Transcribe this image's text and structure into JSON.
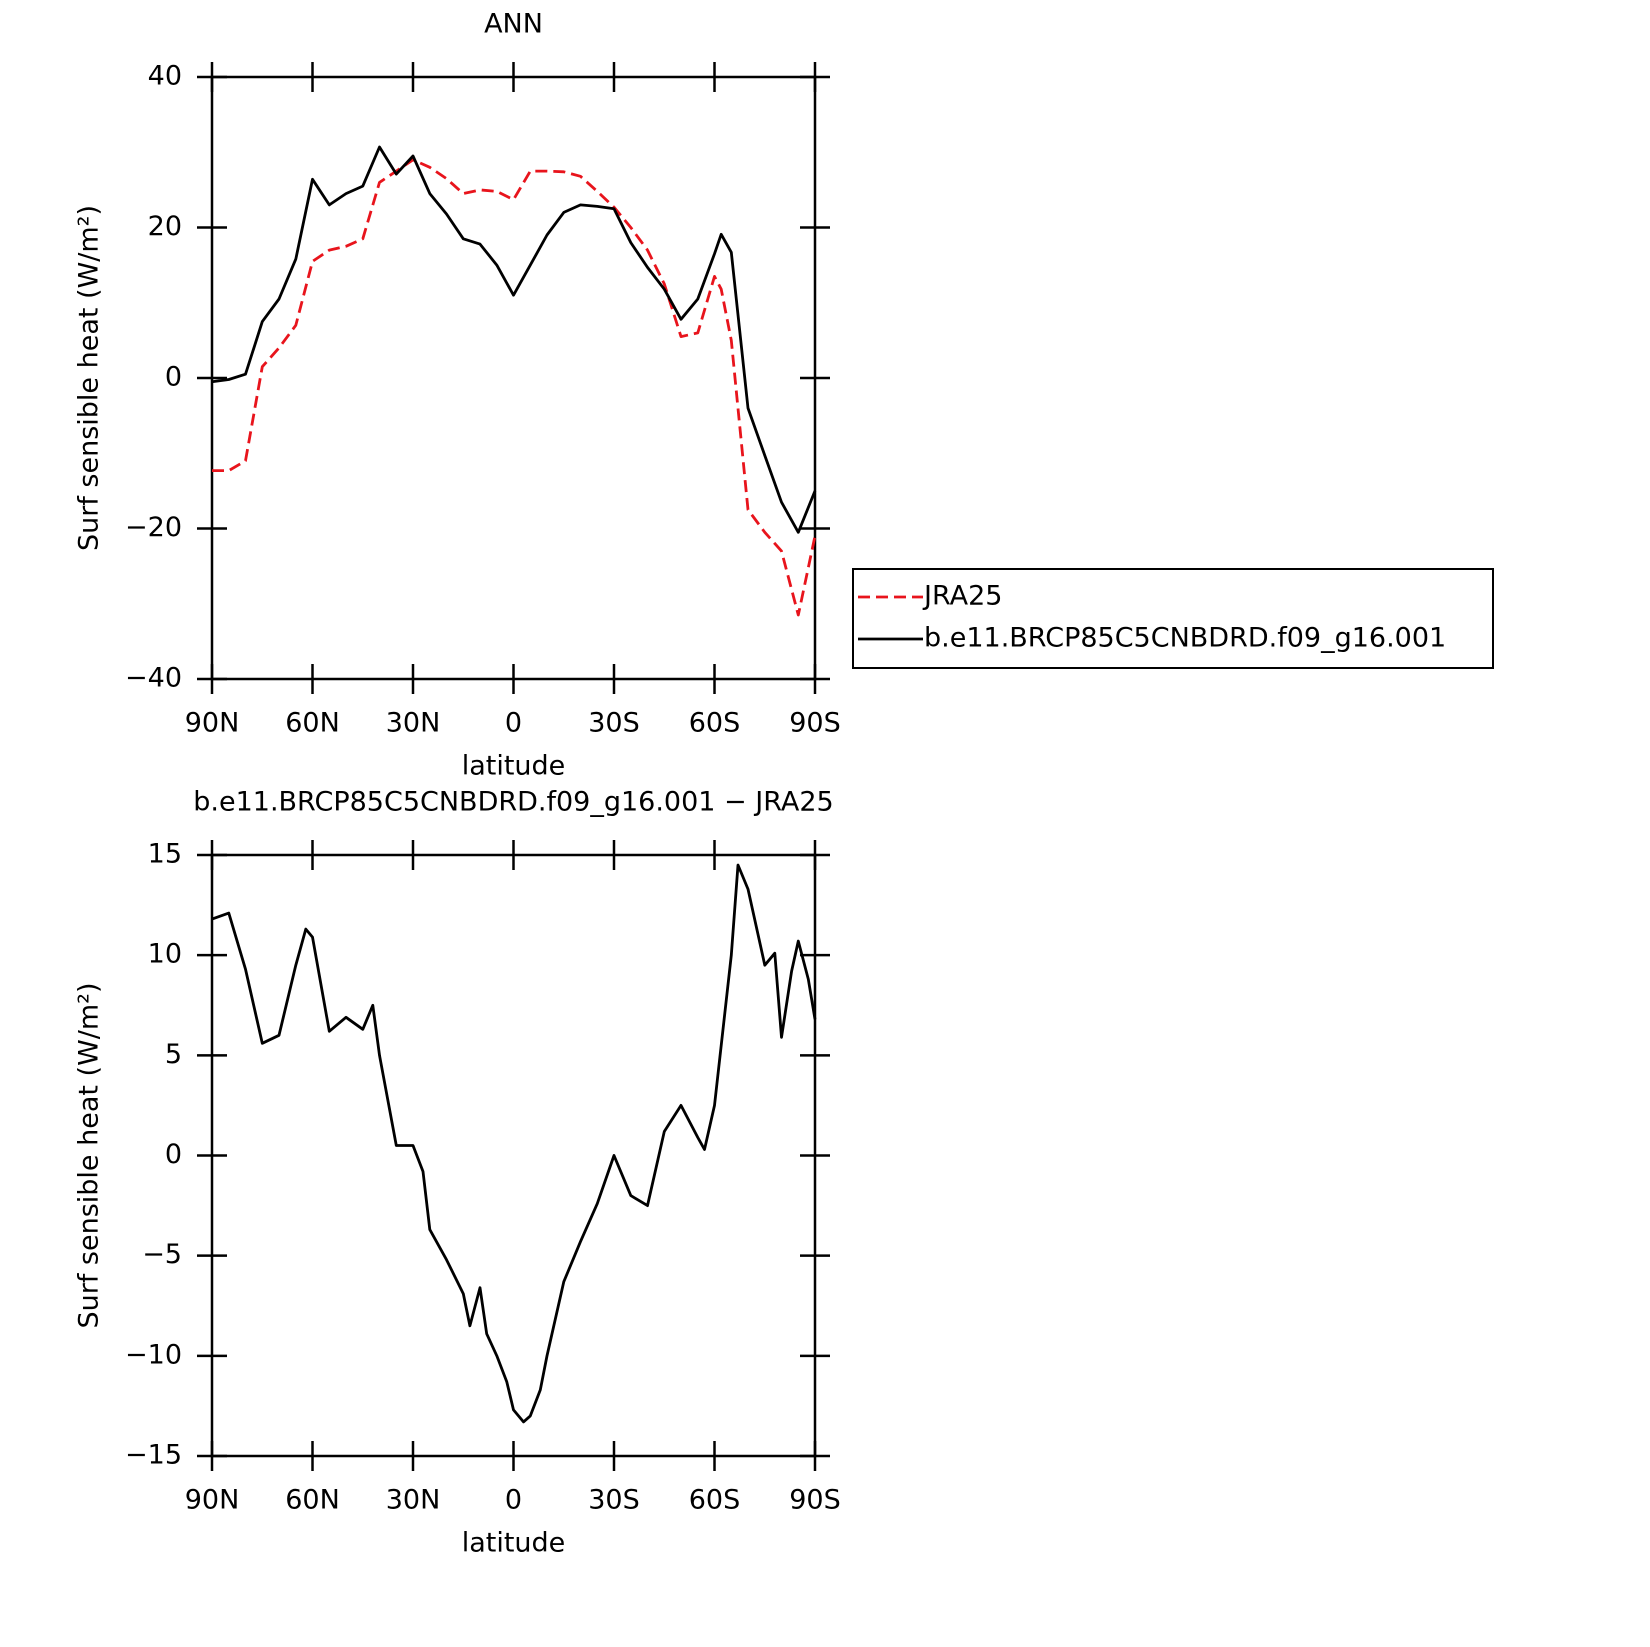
{
  "chart_data": [
    {
      "type": "line",
      "title": "ANN",
      "x_label": "latitude",
      "y_label": "Surf sensible heat (W/m²)",
      "x": [
        90,
        85,
        80,
        75,
        70,
        65,
        60,
        55,
        50,
        45,
        40,
        35,
        30,
        25,
        20,
        15,
        10,
        5,
        0,
        -5,
        -10,
        -15,
        -20,
        -25,
        -30,
        -35,
        -40,
        -45,
        -50,
        -55,
        -60,
        -62,
        -65,
        -70,
        -75,
        -80,
        -85,
        -90
      ],
      "series": [
        {
          "name": "JRA25",
          "color": "#e8141c",
          "dash": true,
          "values": [
            -12.3,
            -12.3,
            -11,
            1.5,
            4,
            7,
            15.5,
            17,
            17.5,
            18.5,
            26,
            27.5,
            29,
            28,
            26.5,
            24.5,
            25,
            24.8,
            23.7,
            27.5,
            27.5,
            27.4,
            26.8,
            24.8,
            22.7,
            20,
            17,
            12.5,
            5.5,
            6,
            13.5,
            11.8,
            5,
            -17.5,
            -20.5,
            -23,
            -31.5,
            -21
          ]
        },
        {
          "name": "b.e11.BRCP85C5CNBDRD.f09_g16.001",
          "color": "#000000",
          "dash": false,
          "values": [
            -0.5,
            -0.2,
            0.5,
            7.5,
            10.5,
            15.8,
            26.4,
            23,
            24.5,
            25.5,
            30.7,
            27.1,
            29.5,
            24.5,
            21.8,
            18.5,
            17.8,
            15,
            11,
            15,
            19,
            22,
            23,
            22.8,
            22.5,
            18,
            14.7,
            11.8,
            7.8,
            10.5,
            16.5,
            19.1,
            16.7,
            -4,
            -10.3,
            -16.5,
            -20.5,
            -15
          ]
        }
      ],
      "xlim": [
        90,
        -90
      ],
      "xticks": [
        {
          "value": 90,
          "label": "90N"
        },
        {
          "value": 60,
          "label": "60N"
        },
        {
          "value": 30,
          "label": "30N"
        },
        0,
        {
          "value": -30,
          "label": "30S"
        },
        {
          "value": -60,
          "label": "60S"
        },
        {
          "value": -90,
          "label": "90S"
        }
      ],
      "ylim": [
        -40,
        40
      ],
      "yticks": [
        {
          "value": -40,
          "label": "−40"
        },
        {
          "value": -20,
          "label": "−20"
        },
        0,
        20,
        40
      ],
      "legend": "right"
    },
    {
      "type": "line",
      "title": "b.e11.BRCP85C5CNBDRD.f09_g16.001 − JRA25",
      "x_label": "latitude",
      "y_label": "Surf sensible heat (W/m²)",
      "x": [
        90,
        85,
        80,
        75,
        70,
        65,
        62,
        60,
        55,
        50,
        45,
        42,
        40,
        35,
        30,
        27,
        25,
        20,
        15,
        13,
        10,
        8,
        5,
        2,
        0,
        -3,
        -5,
        -8,
        -10,
        -15,
        -20,
        -25,
        -30,
        -35,
        -40,
        -45,
        -50,
        -55,
        -57,
        -60,
        -65,
        -67,
        -70,
        -75,
        -78,
        -80,
        -83,
        -85,
        -88,
        -90
      ],
      "series": [
        {
          "name": "b.e11.BRCP85C5CNBDRD.f09_g16.001 − JRA25",
          "color": "#000000",
          "dash": false,
          "values": [
            11.8,
            12.1,
            9.3,
            5.6,
            6.0,
            9.5,
            11.3,
            10.9,
            6.2,
            6.9,
            6.3,
            7.5,
            5,
            0.5,
            0.5,
            -0.8,
            -3.7,
            -5.2,
            -6.9,
            -8.5,
            -6.6,
            -8.9,
            -10,
            -11.3,
            -12.7,
            -13.3,
            -13,
            -11.7,
            -10,
            -6.3,
            -4.3,
            -2.4,
            0,
            -2,
            -2.5,
            1.2,
            2.5,
            0.9,
            0.3,
            2.5,
            10,
            14.5,
            13.3,
            9.5,
            10.1,
            5.9,
            9.2,
            10.7,
            8.8,
            6.8
          ]
        }
      ],
      "xlim": [
        90,
        -90
      ],
      "xticks": [
        {
          "value": 90,
          "label": "90N"
        },
        {
          "value": 60,
          "label": "60N"
        },
        {
          "value": 30,
          "label": "30N"
        },
        0,
        {
          "value": -30,
          "label": "30S"
        },
        {
          "value": -60,
          "label": "60S"
        },
        {
          "value": -90,
          "label": "90S"
        }
      ],
      "ylim": [
        -15,
        15
      ],
      "yticks": [
        {
          "value": -15,
          "label": "−15"
        },
        {
          "value": -10,
          "label": "−10"
        },
        {
          "value": -5,
          "label": "−5"
        },
        0,
        5,
        10,
        15
      ]
    }
  ]
}
